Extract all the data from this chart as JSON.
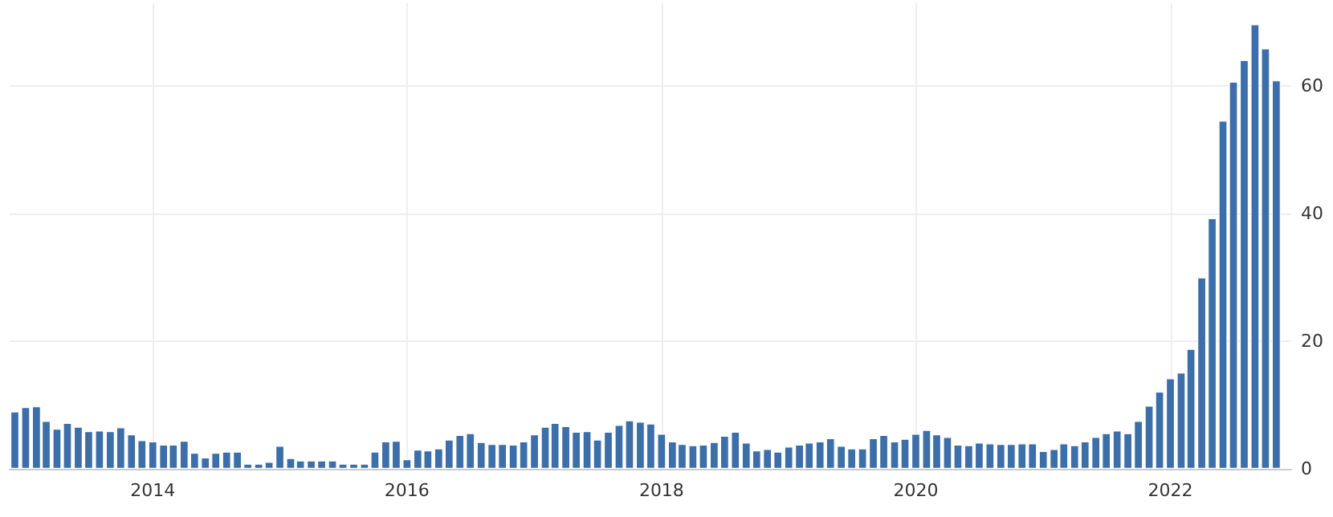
{
  "chart_data": {
    "type": "bar",
    "x": [
      "2012-12",
      "2013-01",
      "2013-02",
      "2013-03",
      "2013-04",
      "2013-05",
      "2013-06",
      "2013-07",
      "2013-08",
      "2013-09",
      "2013-10",
      "2013-11",
      "2013-12",
      "2014-01",
      "2014-02",
      "2014-03",
      "2014-04",
      "2014-05",
      "2014-06",
      "2014-07",
      "2014-08",
      "2014-09",
      "2014-10",
      "2014-11",
      "2014-12",
      "2015-01",
      "2015-02",
      "2015-03",
      "2015-04",
      "2015-05",
      "2015-06",
      "2015-07",
      "2015-08",
      "2015-09",
      "2015-10",
      "2015-11",
      "2015-12",
      "2016-01",
      "2016-02",
      "2016-03",
      "2016-04",
      "2016-05",
      "2016-06",
      "2016-07",
      "2016-08",
      "2016-09",
      "2016-10",
      "2016-11",
      "2016-12",
      "2017-01",
      "2017-02",
      "2017-03",
      "2017-04",
      "2017-05",
      "2017-06",
      "2017-07",
      "2017-08",
      "2017-09",
      "2017-10",
      "2017-11",
      "2017-12",
      "2018-01",
      "2018-02",
      "2018-03",
      "2018-04",
      "2018-05",
      "2018-06",
      "2018-07",
      "2018-08",
      "2018-09",
      "2018-10",
      "2018-11",
      "2018-12",
      "2019-01",
      "2019-02",
      "2019-03",
      "2019-04",
      "2019-05",
      "2019-06",
      "2019-07",
      "2019-08",
      "2019-09",
      "2019-10",
      "2019-11",
      "2019-12",
      "2020-01",
      "2020-02",
      "2020-03",
      "2020-04",
      "2020-05",
      "2020-06",
      "2020-07",
      "2020-08",
      "2020-09",
      "2020-10",
      "2020-11",
      "2020-12",
      "2021-01",
      "2021-02",
      "2021-03",
      "2021-04",
      "2021-05",
      "2021-06",
      "2021-07",
      "2021-08",
      "2021-09",
      "2021-10",
      "2021-11",
      "2021-12",
      "2022-01",
      "2022-02",
      "2022-03",
      "2022-04",
      "2022-05",
      "2022-06",
      "2022-07",
      "2022-08",
      "2022-09",
      "2022-10",
      "2022-11"
    ],
    "values": [
      9.0,
      9.7,
      9.8,
      7.5,
      6.3,
      7.2,
      6.6,
      5.9,
      6.0,
      5.9,
      6.5,
      5.4,
      4.5,
      4.3,
      3.8,
      3.8,
      4.4,
      2.5,
      1.8,
      2.5,
      2.7,
      2.7,
      0.8,
      0.8,
      1.1,
      3.6,
      1.7,
      1.3,
      1.3,
      1.3,
      1.3,
      0.8,
      0.8,
      0.8,
      2.7,
      4.3,
      4.4,
      1.5,
      3.0,
      2.9,
      3.2,
      4.6,
      5.3,
      5.6,
      4.2,
      3.9,
      3.9,
      3.8,
      4.3,
      5.4,
      6.6,
      7.2,
      6.7,
      5.8,
      5.9,
      4.6,
      5.8,
      6.9,
      7.6,
      7.4,
      7.1,
      5.5,
      4.3,
      3.9,
      3.7,
      3.8,
      4.2,
      5.2,
      5.8,
      4.1,
      2.9,
      3.1,
      2.7,
      3.5,
      3.8,
      4.1,
      4.3,
      4.8,
      3.6,
      3.2,
      3.2,
      4.8,
      5.3,
      4.3,
      4.7,
      5.5,
      6.1,
      5.4,
      5.0,
      3.8,
      3.7,
      4.1,
      4.0,
      3.9,
      3.9,
      4.0,
      4.0,
      2.8,
      3.1,
      4.0,
      3.7,
      4.3,
      5.0,
      5.6,
      6.0,
      5.6,
      7.5,
      9.9,
      12.1,
      14.2,
      15.1,
      18.8,
      30.0,
      39.3,
      54.6,
      60.7,
      64.1,
      69.7,
      65.9,
      60.9
    ],
    "color": "#3c6ea9",
    "xlim": [
      "2012-11-16",
      "2022-12-14"
    ],
    "xticks": [
      "2014",
      "2016",
      "2018",
      "2020",
      "2022"
    ],
    "ylim": [
      0,
      73
    ],
    "yticks": [
      0,
      20,
      40,
      60
    ],
    "grid": true
  }
}
